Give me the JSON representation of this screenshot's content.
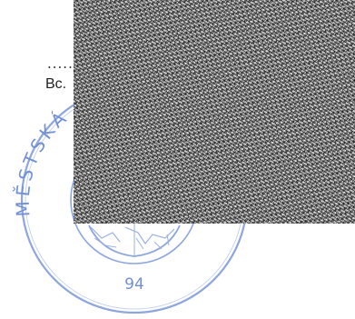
{
  "document": {
    "dotted_line": "......",
    "signer_prefix": "Bc.",
    "redaction_label": "redacted area"
  },
  "stamp": {
    "arc_text": "MĚSTSKÁ",
    "number": "94",
    "color": "#6f8fd6"
  }
}
